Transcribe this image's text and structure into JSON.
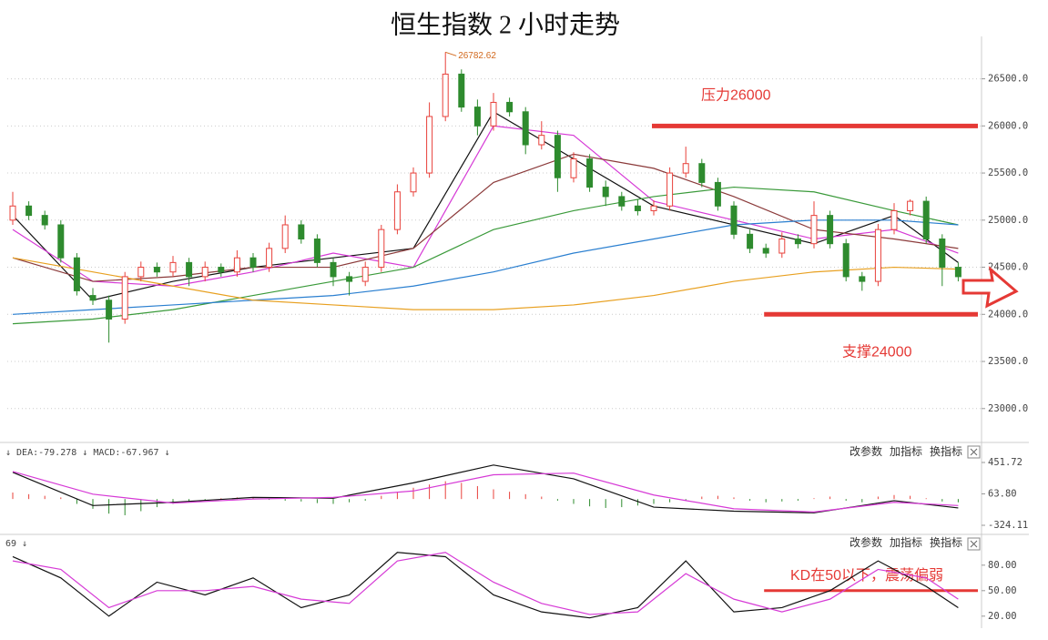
{
  "chart_data": [
    {
      "type": "candlestick",
      "title": "恒生指数 2 小时走势",
      "open": [
        25000,
        25150,
        25050,
        24950,
        24600,
        24200,
        24150,
        23950,
        24400,
        24500,
        24450,
        24550,
        24400,
        24500,
        24450,
        24600,
        24500,
        24700,
        24950,
        24800,
        24550,
        24400,
        24350,
        24500,
        24900,
        25300,
        25500,
        26100,
        26550,
        26200,
        26000,
        26250,
        26150,
        25800,
        25900,
        25450,
        25650,
        25350,
        25250,
        25150,
        25100,
        25150,
        25500,
        25600,
        25400,
        25150,
        24850,
        24700,
        24650,
        24800,
        24750,
        25050,
        24750,
        24400,
        24350,
        24900,
        25100,
        25200,
        24800,
        24500
      ],
      "high": [
        25300,
        25200,
        25100,
        25000,
        24650,
        24280,
        24200,
        24450,
        24560,
        24550,
        24620,
        24600,
        24560,
        24540,
        24680,
        24650,
        24760,
        25050,
        25000,
        24850,
        24600,
        24450,
        24560,
        24950,
        25380,
        25560,
        26250,
        26782.62,
        26600,
        26280,
        26350,
        26300,
        26200,
        26050,
        25950,
        25720,
        25700,
        25420,
        25300,
        25220,
        25210,
        25560,
        25780,
        25650,
        25450,
        25200,
        24900,
        24750,
        24870,
        24850,
        25200,
        25100,
        24800,
        24450,
        24960,
        25180,
        25220,
        25250,
        24850,
        24550
      ],
      "low": [
        24950,
        25000,
        24900,
        24550,
        24200,
        24100,
        23700,
        23900,
        24350,
        24400,
        24400,
        24300,
        24350,
        24400,
        24400,
        24450,
        24450,
        24650,
        24750,
        24500,
        24300,
        24200,
        24300,
        24450,
        24850,
        25250,
        25450,
        26050,
        26150,
        25900,
        25950,
        26100,
        25700,
        25750,
        25300,
        25400,
        25300,
        25150,
        25100,
        25050,
        25050,
        25100,
        25450,
        25350,
        25100,
        24800,
        24650,
        24600,
        24600,
        24700,
        24700,
        24700,
        24350,
        24250,
        24300,
        24850,
        25050,
        24750,
        24300,
        24350
      ],
      "close": [
        25150,
        25050,
        24950,
        24600,
        24250,
        24150,
        23950,
        24400,
        24500,
        24450,
        24550,
        24400,
        24500,
        24450,
        24600,
        24500,
        24700,
        24950,
        24800,
        24550,
        24400,
        24350,
        24500,
        24900,
        25300,
        25500,
        26100,
        26550,
        26200,
        26000,
        26250,
        26150,
        25800,
        25900,
        25450,
        25650,
        25350,
        25250,
        25150,
        25100,
        25150,
        25500,
        25600,
        25400,
        25150,
        24850,
        24700,
        24650,
        24800,
        24750,
        25050,
        24750,
        24400,
        24350,
        24900,
        25100,
        25200,
        24800,
        24500,
        24400
      ],
      "up_color": "#e8403a",
      "down_color": "#2e8b2e",
      "max_index": 27,
      "lines": [
        {
          "color": "#111111",
          "x": [
            0,
            5,
            10,
            15,
            20,
            25,
            30,
            35,
            40,
            45,
            50,
            55,
            59
          ],
          "values": [
            25050,
            24150,
            24350,
            24500,
            24600,
            24700,
            26150,
            25650,
            25150,
            24950,
            24750,
            25050,
            24550
          ]
        },
        {
          "color": "#d63ad6",
          "x": [
            0,
            5,
            10,
            15,
            20,
            25,
            30,
            35,
            40,
            45,
            50,
            55,
            59
          ],
          "values": [
            24900,
            24350,
            24300,
            24450,
            24650,
            24500,
            26000,
            25900,
            25200,
            25000,
            24800,
            24900,
            24650
          ]
        },
        {
          "color": "#8b3a3a",
          "x": [
            0,
            5,
            10,
            15,
            20,
            25,
            30,
            35,
            40,
            45,
            50,
            55,
            59
          ],
          "values": [
            24600,
            24350,
            24400,
            24500,
            24500,
            24700,
            25400,
            25700,
            25550,
            25250,
            24900,
            24800,
            24700
          ]
        },
        {
          "color": "#3a9a3a",
          "x": [
            0,
            5,
            10,
            15,
            20,
            25,
            30,
            35,
            40,
            45,
            50,
            55,
            59
          ],
          "values": [
            23900,
            23950,
            24050,
            24200,
            24350,
            24500,
            24900,
            25100,
            25250,
            25350,
            25300,
            25100,
            24950
          ]
        },
        {
          "color": "#2a7fd0",
          "x": [
            0,
            5,
            10,
            15,
            20,
            25,
            30,
            35,
            40,
            45,
            50,
            55,
            59
          ],
          "values": [
            24000,
            24050,
            24100,
            24150,
            24200,
            24300,
            24450,
            24650,
            24800,
            24950,
            25000,
            25000,
            24950
          ]
        },
        {
          "color": "#e8a020",
          "x": [
            0,
            5,
            10,
            15,
            20,
            25,
            30,
            35,
            40,
            45,
            50,
            55,
            59
          ],
          "values": [
            24600,
            24450,
            24300,
            24150,
            24100,
            24050,
            24050,
            24100,
            24200,
            24350,
            24450,
            24500,
            24480
          ]
        }
      ],
      "levels": [
        {
          "value": 26000,
          "label": "压力26000",
          "start": 40
        },
        {
          "value": 24000,
          "label": "支撑24000",
          "start": 47
        }
      ],
      "ylim": [
        22650,
        26950
      ],
      "yticks": [
        {
          "value": 23000,
          "label": "23000.0"
        },
        {
          "value": 23500,
          "label": "23500.0"
        },
        {
          "value": 24000,
          "label": "24000.0"
        },
        {
          "value": 24500,
          "label": "24500.0"
        },
        {
          "value": 25000,
          "label": "25000.0"
        },
        {
          "value": 25500,
          "label": "25500.0"
        },
        {
          "value": 26000,
          "label": "26000.0"
        },
        {
          "value": 26500,
          "label": "26500.0"
        }
      ],
      "grid": true
    },
    {
      "type": "macd",
      "header": "↓ DEA:-79.278 ↓ MACD:-67.967 ↓",
      "buttons": [
        "改参数",
        "加指标",
        "换指标"
      ],
      "histogram": [
        80,
        60,
        40,
        20,
        -60,
        -120,
        -180,
        -200,
        -150,
        -100,
        -60,
        -40,
        -20,
        10,
        20,
        15,
        -10,
        -20,
        -30,
        -50,
        -60,
        -40,
        -20,
        40,
        90,
        140,
        180,
        220,
        200,
        160,
        120,
        90,
        60,
        30,
        -20,
        -60,
        -90,
        -110,
        -100,
        -80,
        -60,
        -40,
        -20,
        30,
        40,
        20,
        -20,
        -40,
        -30,
        -20,
        10,
        30,
        -20,
        -40,
        30,
        50,
        40,
        10,
        -30,
        -40
      ],
      "up_color": "#e8403a",
      "down_color": "#2e8b2e",
      "lines": [
        {
          "color": "#111111",
          "x": [
            0,
            5,
            10,
            15,
            20,
            25,
            30,
            35,
            40,
            45,
            50,
            55,
            59
          ],
          "values": [
            330,
            -80,
            -40,
            20,
            10,
            200,
            420,
            250,
            -100,
            -150,
            -170,
            -20,
            -110
          ]
        },
        {
          "color": "#d63ad6",
          "x": [
            0,
            5,
            10,
            15,
            20,
            25,
            30,
            35,
            40,
            45,
            50,
            55,
            59
          ],
          "values": [
            340,
            60,
            -50,
            0,
            20,
            100,
            300,
            320,
            50,
            -120,
            -160,
            -40,
            -80
          ]
        }
      ],
      "ylim": [
        -414,
        654
      ],
      "yticks": [
        451.72,
        {
          "value": 63.8,
          "label": "63.80"
        },
        -324.11
      ]
    },
    {
      "type": "kd",
      "header": "69 ↓",
      "buttons": [
        "改参数",
        "加指标",
        "换指标"
      ],
      "lines": [
        {
          "color": "#111111",
          "x": [
            0,
            3,
            6,
            9,
            12,
            15,
            18,
            21,
            24,
            27,
            30,
            33,
            36,
            39,
            42,
            45,
            48,
            51,
            54,
            57,
            59
          ],
          "values": [
            90,
            65,
            20,
            60,
            45,
            65,
            30,
            45,
            95,
            90,
            45,
            25,
            18,
            30,
            85,
            25,
            30,
            50,
            85,
            55,
            30
          ]
        },
        {
          "color": "#d63ad6",
          "x": [
            0,
            3,
            6,
            9,
            12,
            15,
            18,
            21,
            24,
            27,
            30,
            33,
            36,
            39,
            42,
            45,
            48,
            51,
            54,
            57,
            59
          ],
          "values": [
            85,
            75,
            30,
            50,
            50,
            55,
            40,
            35,
            85,
            95,
            60,
            35,
            22,
            25,
            70,
            40,
            25,
            40,
            75,
            65,
            40
          ]
        }
      ],
      "levels": [
        {
          "value": 50,
          "label": "KD在50以下，震荡偏弱",
          "start": 47
        }
      ],
      "ylim": [
        8,
        113
      ],
      "yticks": [
        {
          "value": 80,
          "label": "80.00"
        },
        {
          "value": 50,
          "label": "50.00"
        },
        {
          "value": 20,
          "label": "20.00"
        }
      ]
    }
  ]
}
